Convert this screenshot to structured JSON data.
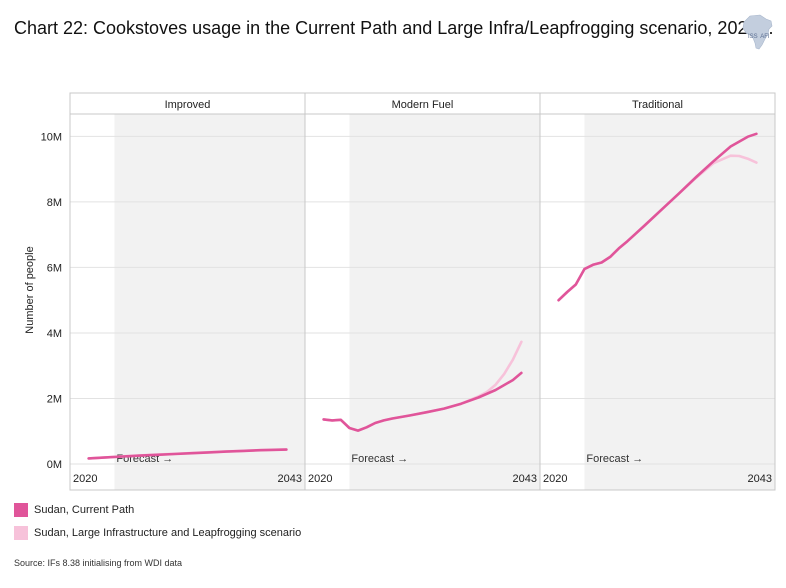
{
  "title": "Chart 22: Cookstoves usage in the Current Path and Large Infra/Leapfrogging scenario, 2020-..",
  "logo": {
    "text": "ISS",
    "suffix": "AFI"
  },
  "source": "Source: IFs 8.38 initialising from WDI data",
  "chart_data": {
    "type": "line",
    "ylabel": "Number of people",
    "ylim": [
      0,
      10500000
    ],
    "xlim": [
      2019,
      2044
    ],
    "forecast_start": 2023,
    "forecast_label": "Forecast →",
    "ytick_values": [
      0,
      2000000,
      4000000,
      6000000,
      8000000,
      10000000
    ],
    "ytick_labels": [
      "0M",
      "2M",
      "4M",
      "6M",
      "8M",
      "10M"
    ],
    "xtick_values": [
      2020,
      2043
    ],
    "xtick_labels": [
      "2020",
      "2043"
    ],
    "grid": true,
    "legend_position": "bottom-left",
    "series_styles": [
      {
        "name": "Sudan, Current Path",
        "color": "#e0559a"
      },
      {
        "name": "Sudan, Large Infrastructure and Leapfrogging scenario",
        "color": "#f7c2da"
      }
    ],
    "panels": [
      {
        "title": "Improved",
        "series": [
          {
            "name": "Sudan, Current Path",
            "x": [
              2020,
              2022,
              2024,
              2026,
              2028,
              2030,
              2032,
              2034,
              2036,
              2038,
              2040,
              2043
            ],
            "values": [
              170000,
              200000,
              230000,
              255000,
              280000,
              305000,
              330000,
              355000,
              380000,
              400000,
              420000,
              440000
            ]
          },
          {
            "name": "Sudan, Large Infrastructure and Leapfrogging scenario",
            "x": [
              2020,
              2022,
              2024,
              2026,
              2028,
              2030,
              2032,
              2034,
              2036,
              2038,
              2040,
              2043
            ],
            "values": [
              170000,
              200000,
              235000,
              262000,
              288000,
              312000,
              336000,
              360000,
              384000,
              404000,
              424000,
              445000
            ]
          }
        ]
      },
      {
        "title": "Modern Fuel",
        "series": [
          {
            "name": "Sudan, Current Path",
            "x": [
              2020,
              2021,
              2022,
              2023,
              2024,
              2025,
              2026,
              2027,
              2028,
              2030,
              2032,
              2034,
              2036,
              2038,
              2040,
              2042,
              2043
            ],
            "values": [
              1360000,
              1330000,
              1350000,
              1100000,
              1020000,
              1120000,
              1250000,
              1330000,
              1390000,
              1480000,
              1580000,
              1690000,
              1840000,
              2030000,
              2260000,
              2560000,
              2780000
            ]
          },
          {
            "name": "Sudan, Large Infrastructure and Leapfrogging scenario",
            "x": [
              2020,
              2021,
              2022,
              2023,
              2024,
              2025,
              2026,
              2027,
              2028,
              2030,
              2032,
              2034,
              2036,
              2038,
              2039,
              2040,
              2041,
              2042,
              2043
            ],
            "values": [
              1360000,
              1330000,
              1350000,
              1100000,
              1020000,
              1120000,
              1250000,
              1330000,
              1390000,
              1480000,
              1580000,
              1690000,
              1840000,
              2060000,
              2200000,
              2420000,
              2750000,
              3180000,
              3730000
            ]
          }
        ]
      },
      {
        "title": "Traditional",
        "series": [
          {
            "name": "Sudan, Current Path",
            "x": [
              2020,
              2021,
              2022,
              2023,
              2024,
              2025,
              2026,
              2027,
              2028,
              2030,
              2032,
              2034,
              2036,
              2038,
              2040,
              2042,
              2043
            ],
            "values": [
              5000000,
              5250000,
              5480000,
              5950000,
              6080000,
              6150000,
              6320000,
              6580000,
              6800000,
              7280000,
              7770000,
              8260000,
              8760000,
              9240000,
              9690000,
              9990000,
              10080000
            ]
          },
          {
            "name": "Sudan, Large Infrastructure and Leapfrogging scenario",
            "x": [
              2020,
              2021,
              2022,
              2023,
              2024,
              2025,
              2026,
              2027,
              2028,
              2030,
              2032,
              2034,
              2036,
              2038,
              2040,
              2041,
              2042,
              2043
            ],
            "values": [
              5000000,
              5250000,
              5480000,
              5950000,
              6080000,
              6150000,
              6320000,
              6580000,
              6800000,
              7280000,
              7770000,
              8260000,
              8740000,
              9180000,
              9410000,
              9400000,
              9320000,
              9200000
            ]
          }
        ]
      }
    ]
  }
}
